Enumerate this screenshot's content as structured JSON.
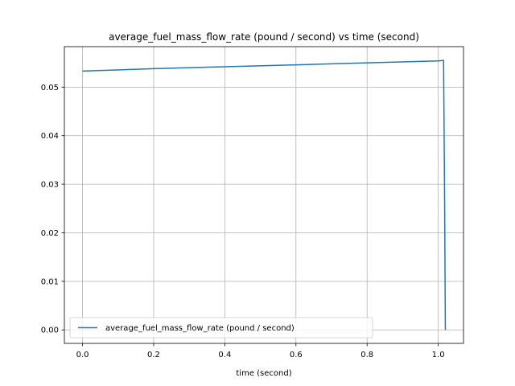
{
  "chart_data": {
    "type": "line",
    "title": "average_fuel_mass_flow_rate (pound / second) vs time (second)",
    "xlabel": "time (second)",
    "ylabel": "",
    "xlim": [
      -0.051,
      1.071
    ],
    "ylim": [
      -0.00278,
      0.05834
    ],
    "xticks": [
      0.0,
      0.2,
      0.4,
      0.6,
      0.8,
      1.0
    ],
    "xtick_labels": [
      "0.0",
      "0.2",
      "0.4",
      "0.6",
      "0.8",
      "1.0"
    ],
    "yticks": [
      0.0,
      0.01,
      0.02,
      0.03,
      0.04,
      0.05
    ],
    "ytick_labels": [
      "0.00",
      "0.01",
      "0.02",
      "0.03",
      "0.04",
      "0.05"
    ],
    "grid": true,
    "legend_position": "lower-left",
    "series": [
      {
        "name": "average_fuel_mass_flow_rate (pound / second)",
        "color": "#1f77b4",
        "x": [
          0.0,
          0.2,
          0.4,
          0.6,
          0.8,
          1.0,
          1.015,
          1.018,
          1.02
        ],
        "y": [
          0.0533,
          0.0538,
          0.0542,
          0.0546,
          0.055,
          0.0554,
          0.0555,
          0.026,
          0.0
        ]
      }
    ]
  }
}
